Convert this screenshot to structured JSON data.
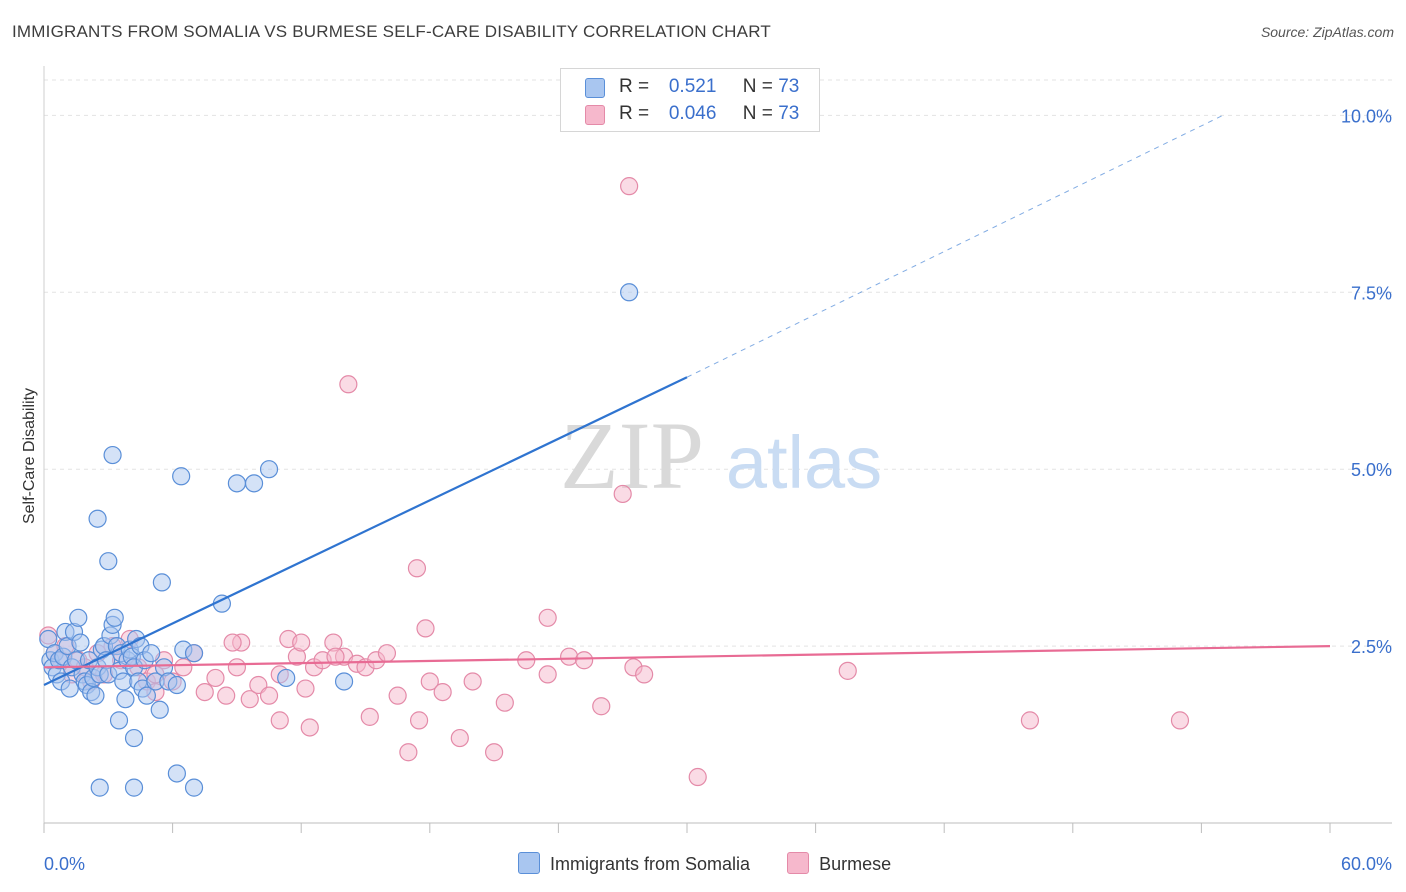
{
  "header": {
    "title": "IMMIGRANTS FROM SOMALIA VS BURMESE SELF-CARE DISABILITY CORRELATION CHART",
    "source": "Source: ZipAtlas.com"
  },
  "watermark": {
    "zip": "ZIP",
    "atlas": "atlas"
  },
  "legend": {
    "r_label": "R =",
    "n_label": "N =",
    "somalia": {
      "r": "0.521",
      "n": "73"
    },
    "burmese": {
      "r": "0.046",
      "n": "73"
    }
  },
  "colors": {
    "somalia_fill": "#a9c6f0",
    "somalia_stroke": "#5a8fd8",
    "somalia_line": "#2f74d0",
    "burmese_fill": "#f6b8cc",
    "burmese_stroke": "#e48aa8",
    "burmese_line": "#e86b94",
    "tick_label": "#3a6fcc",
    "grid": "#e3e3e3"
  },
  "chart_data": {
    "type": "scatter",
    "title": "IMMIGRANTS FROM SOMALIA VS BURMESE SELF-CARE DISABILITY CORRELATION CHART",
    "xlabel": "",
    "ylabel": "Self-Care Disability",
    "xlim": [
      0,
      60
    ],
    "ylim": [
      0,
      10.5
    ],
    "x_tick_labels": [
      "0.0%",
      "60.0%"
    ],
    "y_ticks": [
      2.5,
      5.0,
      7.5,
      10.0
    ],
    "y_tick_labels": [
      "2.5%",
      "5.0%",
      "7.5%",
      "10.0%"
    ],
    "grid": true,
    "legend_position": "top-center",
    "series": [
      {
        "name": "Immigrants from Somalia",
        "r": 0.521,
        "n": 73,
        "trend": {
          "x0": 0,
          "y0": 1.95,
          "x1": 30,
          "y1": 6.3,
          "dashed_to_x": 55,
          "dashed_to_y": 10.0
        },
        "points": [
          [
            0.2,
            2.6
          ],
          [
            0.3,
            2.3
          ],
          [
            0.4,
            2.2
          ],
          [
            0.5,
            2.4
          ],
          [
            0.6,
            2.1
          ],
          [
            0.7,
            2.3
          ],
          [
            0.8,
            2.0
          ],
          [
            0.9,
            2.35
          ],
          [
            1.0,
            2.7
          ],
          [
            1.1,
            2.5
          ],
          [
            1.2,
            1.9
          ],
          [
            1.3,
            2.2
          ],
          [
            1.4,
            2.7
          ],
          [
            1.5,
            2.3
          ],
          [
            1.6,
            2.9
          ],
          [
            1.7,
            2.55
          ],
          [
            1.8,
            2.1
          ],
          [
            1.9,
            2.0
          ],
          [
            2.0,
            1.95
          ],
          [
            2.1,
            2.3
          ],
          [
            2.2,
            1.85
          ],
          [
            2.3,
            2.05
          ],
          [
            2.4,
            1.8
          ],
          [
            2.5,
            2.2
          ],
          [
            2.6,
            2.1
          ],
          [
            2.7,
            2.45
          ],
          [
            2.8,
            2.5
          ],
          [
            2.9,
            2.3
          ],
          [
            3.0,
            2.1
          ],
          [
            3.1,
            2.65
          ],
          [
            3.2,
            2.8
          ],
          [
            3.3,
            2.9
          ],
          [
            3.4,
            2.5
          ],
          [
            3.5,
            2.15
          ],
          [
            3.6,
            2.4
          ],
          [
            3.7,
            2.0
          ],
          [
            3.8,
            1.75
          ],
          [
            3.9,
            2.3
          ],
          [
            4.0,
            2.45
          ],
          [
            4.1,
            2.35
          ],
          [
            4.2,
            2.2
          ],
          [
            4.3,
            2.6
          ],
          [
            4.4,
            2.0
          ],
          [
            4.5,
            2.5
          ],
          [
            4.6,
            1.9
          ],
          [
            4.7,
            2.3
          ],
          [
            4.8,
            1.8
          ],
          [
            5.0,
            2.4
          ],
          [
            5.2,
            2.0
          ],
          [
            5.4,
            1.6
          ],
          [
            5.6,
            2.2
          ],
          [
            5.8,
            2.0
          ],
          [
            6.2,
            1.95
          ],
          [
            6.5,
            2.45
          ],
          [
            7.0,
            2.4
          ],
          [
            2.5,
            4.3
          ],
          [
            3.0,
            3.7
          ],
          [
            3.2,
            5.2
          ],
          [
            5.5,
            3.4
          ],
          [
            6.4,
            4.9
          ],
          [
            8.3,
            3.1
          ],
          [
            9.0,
            4.8
          ],
          [
            9.8,
            4.8
          ],
          [
            10.5,
            5.0
          ],
          [
            11.3,
            2.05
          ],
          [
            14.0,
            2.0
          ],
          [
            27.3,
            7.5
          ],
          [
            2.6,
            0.5
          ],
          [
            4.2,
            0.5
          ],
          [
            6.2,
            0.7
          ],
          [
            7.0,
            0.5
          ],
          [
            3.5,
            1.45
          ],
          [
            4.2,
            1.2
          ]
        ]
      },
      {
        "name": "Burmese",
        "r": 0.046,
        "n": 73,
        "trend": {
          "x0": 0,
          "y0": 2.2,
          "x1": 60,
          "y1": 2.5
        },
        "points": [
          [
            0.2,
            2.65
          ],
          [
            0.5,
            2.4
          ],
          [
            0.8,
            2.3
          ],
          [
            1.0,
            2.5
          ],
          [
            1.3,
            2.1
          ],
          [
            1.6,
            2.3
          ],
          [
            1.9,
            2.2
          ],
          [
            2.2,
            2.0
          ],
          [
            2.5,
            2.4
          ],
          [
            2.8,
            2.1
          ],
          [
            3.2,
            2.5
          ],
          [
            3.6,
            2.3
          ],
          [
            4.0,
            2.6
          ],
          [
            4.4,
            2.2
          ],
          [
            4.8,
            2.0
          ],
          [
            5.2,
            2.1
          ],
          [
            5.6,
            2.3
          ],
          [
            6.0,
            2.0
          ],
          [
            6.5,
            2.2
          ],
          [
            7.0,
            2.4
          ],
          [
            7.5,
            1.85
          ],
          [
            8.0,
            2.05
          ],
          [
            8.5,
            1.8
          ],
          [
            9.0,
            2.2
          ],
          [
            9.2,
            2.55
          ],
          [
            9.6,
            1.75
          ],
          [
            10.0,
            1.95
          ],
          [
            10.5,
            1.8
          ],
          [
            11.0,
            2.1
          ],
          [
            11.4,
            2.6
          ],
          [
            11.8,
            2.35
          ],
          [
            12.2,
            1.9
          ],
          [
            12.6,
            2.2
          ],
          [
            13.0,
            2.3
          ],
          [
            13.5,
            2.55
          ],
          [
            14.0,
            2.35
          ],
          [
            14.6,
            2.25
          ],
          [
            15.0,
            2.2
          ],
          [
            15.5,
            2.3
          ],
          [
            16.0,
            2.4
          ],
          [
            16.5,
            1.8
          ],
          [
            17.0,
            1.0
          ],
          [
            17.4,
            3.6
          ],
          [
            17.8,
            2.75
          ],
          [
            18.0,
            2.0
          ],
          [
            18.6,
            1.85
          ],
          [
            20.0,
            2.0
          ],
          [
            21.0,
            1.0
          ],
          [
            21.5,
            1.7
          ],
          [
            22.5,
            2.3
          ],
          [
            24.5,
            2.35
          ],
          [
            25.2,
            2.3
          ],
          [
            23.5,
            2.1
          ],
          [
            26.0,
            1.65
          ],
          [
            27.0,
            4.65
          ],
          [
            27.5,
            2.2
          ],
          [
            28.0,
            2.1
          ],
          [
            30.5,
            0.65
          ],
          [
            37.5,
            2.15
          ],
          [
            46.0,
            1.45
          ],
          [
            53.0,
            1.45
          ],
          [
            27.3,
            9.0
          ],
          [
            14.2,
            6.2
          ],
          [
            23.5,
            2.9
          ],
          [
            5.2,
            1.85
          ],
          [
            11.0,
            1.45
          ],
          [
            12.4,
            1.35
          ],
          [
            15.2,
            1.5
          ],
          [
            17.5,
            1.45
          ],
          [
            19.4,
            1.2
          ],
          [
            8.8,
            2.55
          ],
          [
            12.0,
            2.55
          ],
          [
            13.6,
            2.35
          ]
        ]
      }
    ]
  }
}
